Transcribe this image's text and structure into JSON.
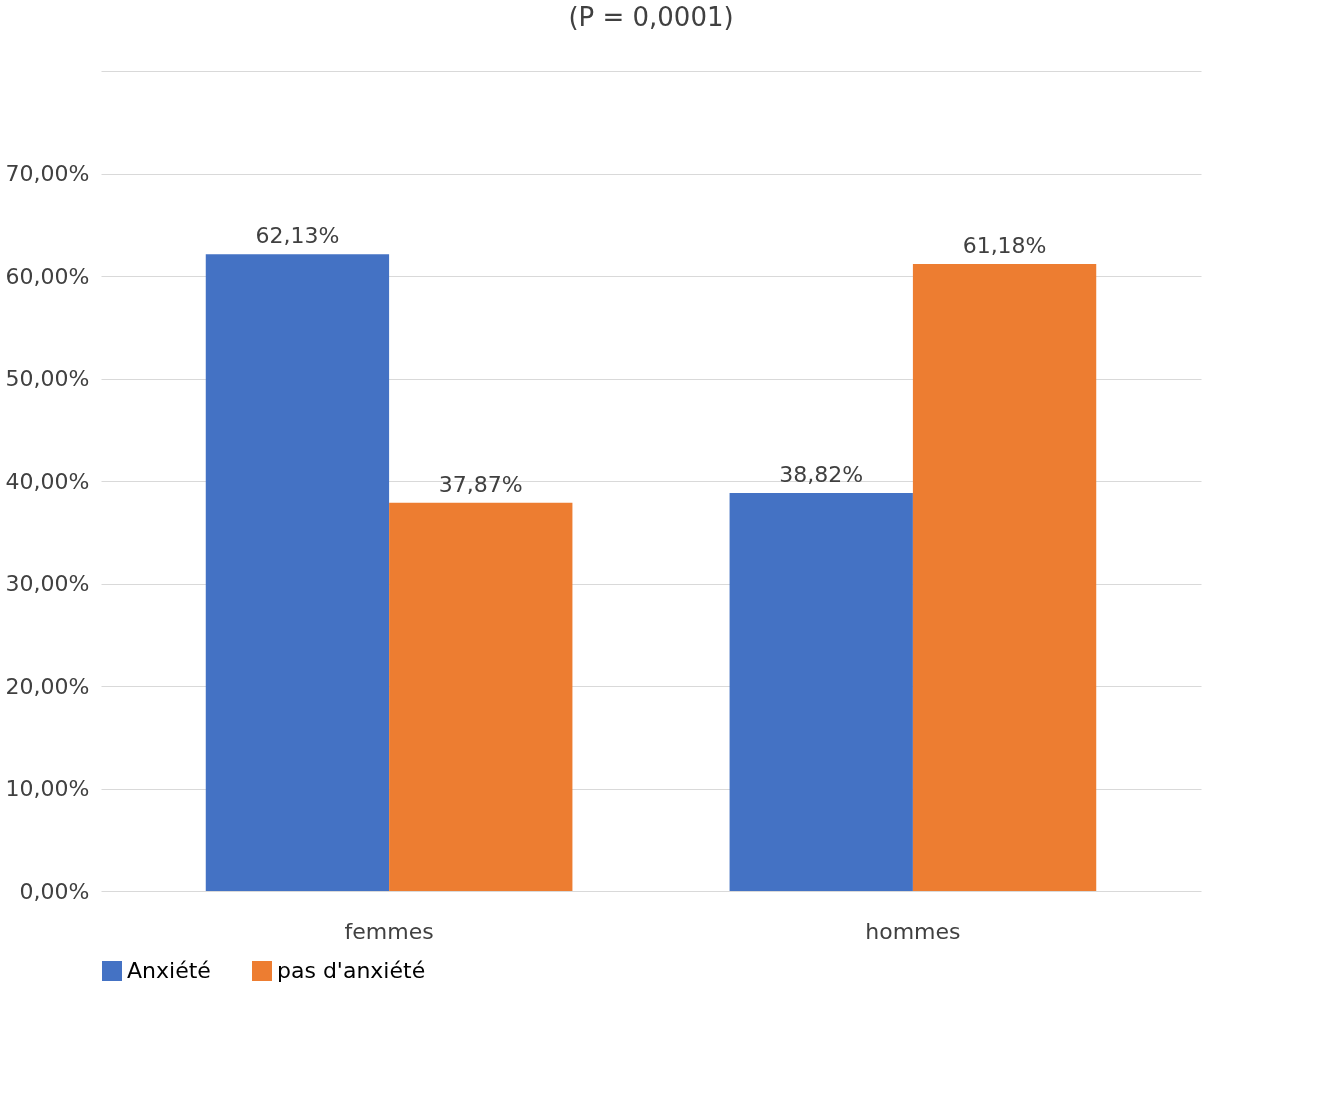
{
  "chart_data": {
    "type": "bar",
    "title": "(P = 0,0001)",
    "categories": [
      "femmes",
      "hommes"
    ],
    "series": [
      {
        "name": "Anxiété",
        "color": "#4472c4",
        "values": [
          62.13,
          38.82
        ],
        "value_labels": [
          "62,13%",
          "38,82%"
        ]
      },
      {
        "name": "pas d'anxiété",
        "color": "#ed7d31",
        "values": [
          37.87,
          61.18
        ],
        "value_labels": [
          "37,87%",
          "61,18%"
        ]
      }
    ],
    "ylim": [
      0,
      80
    ],
    "yticks": [
      {
        "value": 0,
        "label": "0,00%"
      },
      {
        "value": 10,
        "label": "10,00%"
      },
      {
        "value": 20,
        "label": "20,00%"
      },
      {
        "value": 30,
        "label": "30,00%"
      },
      {
        "value": 40,
        "label": "40,00%"
      },
      {
        "value": 50,
        "label": "50,00%"
      },
      {
        "value": 60,
        "label": "60,00%"
      },
      {
        "value": 70,
        "label": "70,00%"
      },
      {
        "value": 80,
        "label": null
      }
    ],
    "grid": "y",
    "legend": "bottom"
  }
}
